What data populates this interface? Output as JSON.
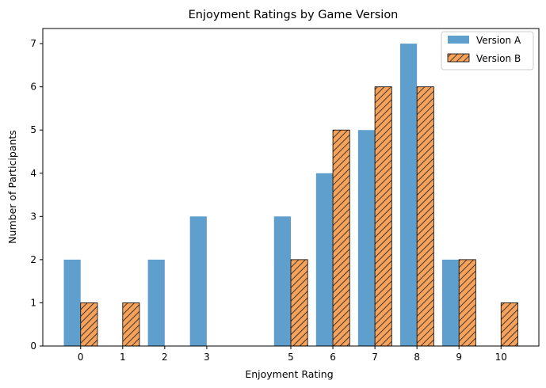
{
  "chart_data": {
    "type": "bar",
    "title": "Enjoyment Ratings by Game Version",
    "xlabel": "Enjoyment Rating",
    "ylabel": "Number of Participants",
    "categories": [
      "0",
      "1",
      "2",
      "3",
      "5",
      "6",
      "7",
      "8",
      "9",
      "10"
    ],
    "series": [
      {
        "name": "Version A",
        "color": "#5f9fce",
        "hatch": "none",
        "values": [
          2,
          0,
          2,
          3,
          3,
          4,
          5,
          7,
          2,
          0
        ]
      },
      {
        "name": "Version B",
        "color": "#f5a25d",
        "hatch": "diagonal",
        "values": [
          1,
          1,
          0,
          0,
          2,
          5,
          6,
          6,
          2,
          1
        ]
      }
    ],
    "yticks": [
      "0",
      "1",
      "2",
      "3",
      "4",
      "5",
      "6",
      "7"
    ],
    "ylim": [
      0,
      7.35
    ],
    "grid": false,
    "legend_position": "top-right"
  }
}
